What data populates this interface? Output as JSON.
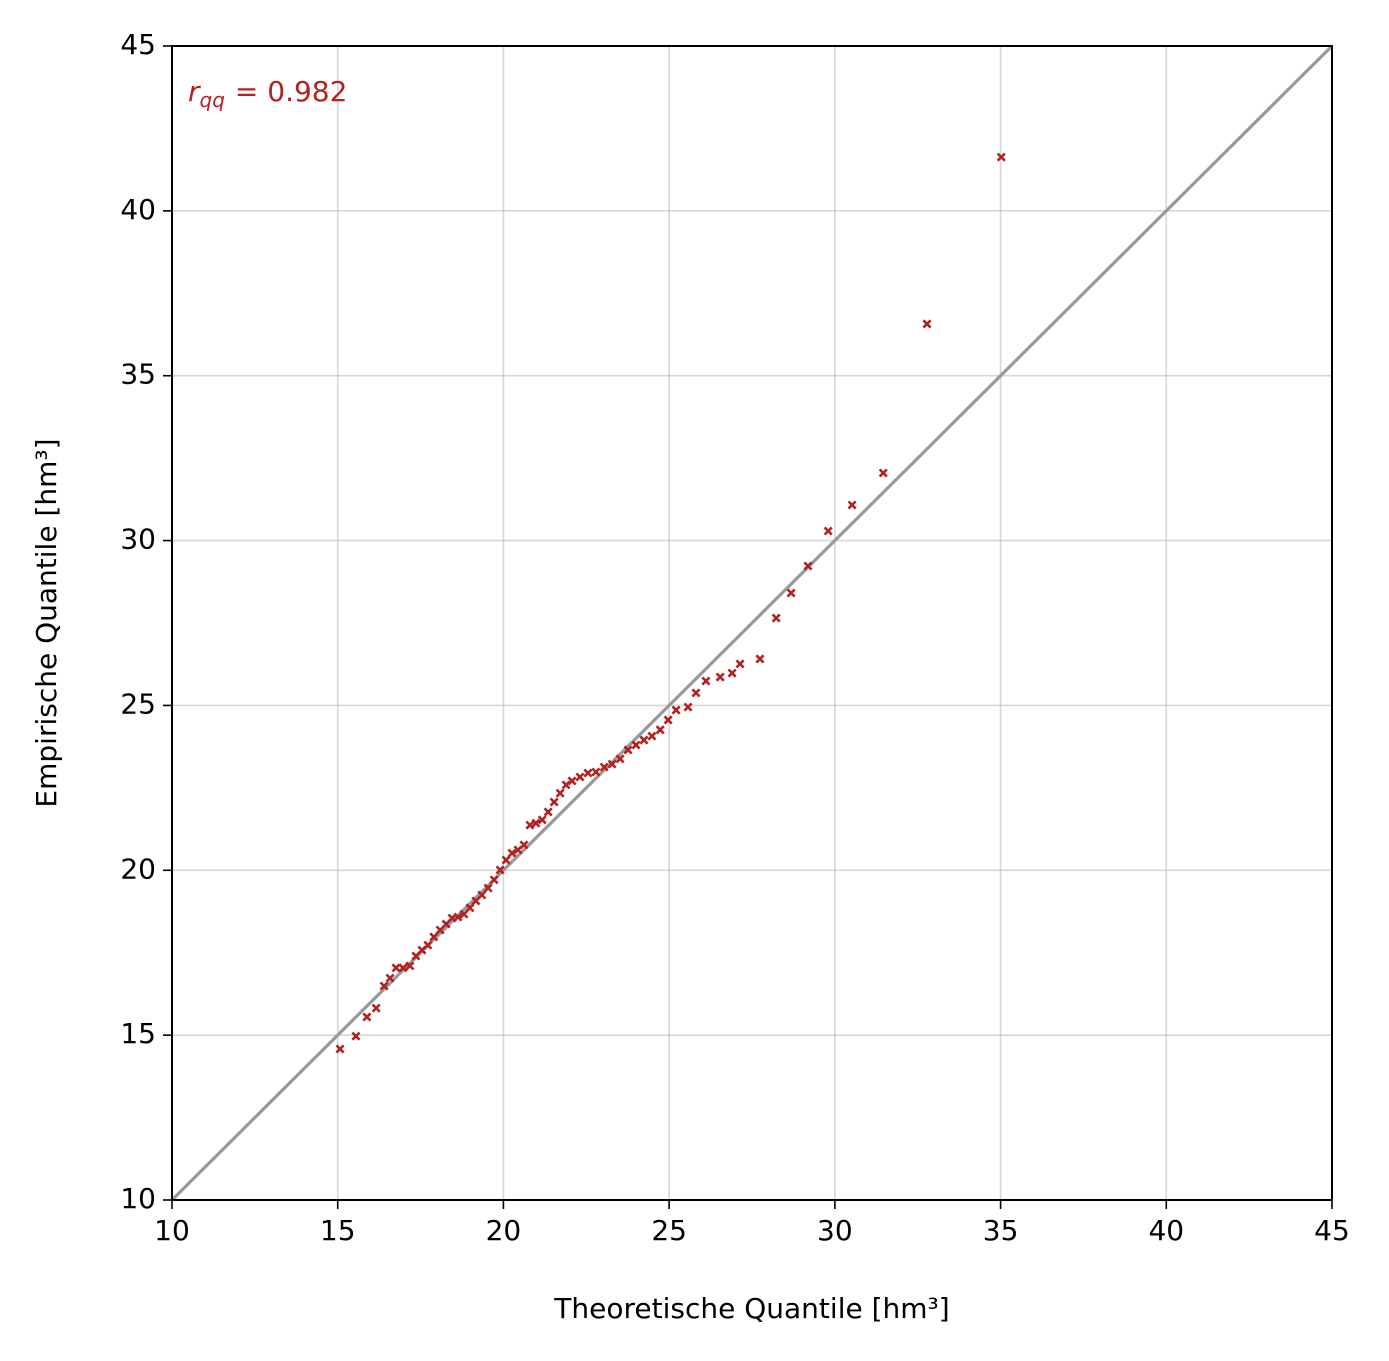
{
  "chart_data": {
    "type": "scatter",
    "xlabel": "Theoretische Quantile [hm³]",
    "ylabel": "Empirische Quantile [hm³]",
    "annotation_symbol": "r",
    "annotation_subscript": "qq",
    "annotation_text": "= 0.982",
    "annotation_color": "#b22222",
    "xlim": [
      10,
      45
    ],
    "ylim": [
      10,
      45
    ],
    "xticks": [
      10,
      15,
      20,
      25,
      30,
      35,
      40,
      45
    ],
    "yticks": [
      10,
      15,
      20,
      25,
      30,
      35,
      40,
      45
    ],
    "grid": true,
    "reference_line_color": "#999999",
    "series": [
      {
        "color": "#b22222",
        "x": [
          15.07,
          15.55,
          15.88,
          16.16,
          16.4,
          16.58,
          16.76,
          16.97,
          17.18,
          17.36,
          17.54,
          17.72,
          17.9,
          18.09,
          18.27,
          18.45,
          18.63,
          18.81,
          18.99,
          19.17,
          19.35,
          19.54,
          19.72,
          19.9,
          20.08,
          20.26,
          20.44,
          20.62,
          20.8,
          20.98,
          21.17,
          21.35,
          21.53,
          21.71,
          21.89,
          22.07,
          22.31,
          22.55,
          22.79,
          23.04,
          23.28,
          23.52,
          23.76,
          24.0,
          24.24,
          24.48,
          24.73,
          24.97,
          25.21,
          25.57,
          25.81,
          26.11,
          26.54,
          26.9,
          27.14,
          27.74,
          28.23,
          28.68,
          29.19,
          29.8,
          30.52,
          31.46,
          32.78,
          35.02
        ],
        "values": [
          14.58,
          14.97,
          15.55,
          15.82,
          16.49,
          16.73,
          17.04,
          17.04,
          17.1,
          17.4,
          17.58,
          17.73,
          17.98,
          18.19,
          18.37,
          18.55,
          18.58,
          18.67,
          18.86,
          19.07,
          19.25,
          19.46,
          19.71,
          20.01,
          20.31,
          20.52,
          20.62,
          20.77,
          21.37,
          21.43,
          21.53,
          21.77,
          22.07,
          22.34,
          22.59,
          22.71,
          22.83,
          22.95,
          22.98,
          23.13,
          23.22,
          23.38,
          23.65,
          23.8,
          23.95,
          24.07,
          24.26,
          24.56,
          24.86,
          24.95,
          25.38,
          25.74,
          25.86,
          25.98,
          26.26,
          26.41,
          27.65,
          28.41,
          29.23,
          30.29,
          31.08,
          32.05,
          36.57,
          41.63
        ]
      }
    ]
  }
}
